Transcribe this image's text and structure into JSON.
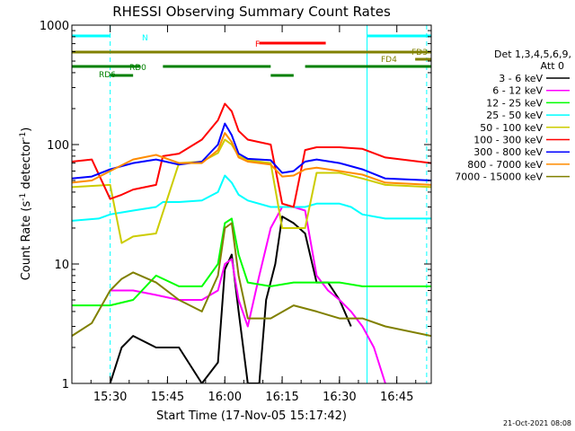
{
  "chart_data": {
    "type": "line",
    "title": "RHESSI Observing Summary Count Rates",
    "xlabel": "Start Time (17-Nov-05 15:17:42)",
    "ylabel_main": "Count Rate (s",
    "ylabel_sup1": "-1",
    "ylabel_mid": " detector",
    "ylabel_sup2": "-1",
    "ylabel_end": ")",
    "y_scale": "log",
    "xlim": [
      15.333,
      16.9
    ],
    "ylim": [
      1,
      1000
    ],
    "x_ticks": [
      {
        "v": 15.5,
        "label": "15:30"
      },
      {
        "v": 15.75,
        "label": "15:45"
      },
      {
        "v": 16.0,
        "label": "16:00"
      },
      {
        "v": 16.25,
        "label": "16:15"
      },
      {
        "v": 16.5,
        "label": "16:30"
      },
      {
        "v": 16.75,
        "label": "16:45"
      }
    ],
    "y_ticks": [
      {
        "v": 1,
        "label": "1"
      },
      {
        "v": 10,
        "label": "10"
      },
      {
        "v": 100,
        "label": "100"
      },
      {
        "v": 1000,
        "label": "1000"
      }
    ],
    "legend_header": [
      "Det 1,3,4,5,6,9,",
      "Att 0"
    ],
    "legend_position": "right",
    "series": [
      {
        "name": "3 - 6 keV",
        "color": "#000000",
        "x": [
          15.333,
          15.42,
          15.5,
          15.55,
          15.6,
          15.7,
          15.8,
          15.9,
          15.97,
          16.0,
          16.03,
          16.06,
          16.1,
          16.15,
          16.18,
          16.22,
          16.25,
          16.3,
          16.35,
          16.4,
          16.45,
          16.5,
          16.55,
          16.62,
          16.7,
          16.9
        ],
        "y": [
          null,
          null,
          1,
          2,
          2.5,
          2,
          2,
          1,
          1.5,
          9,
          12,
          4,
          1,
          1,
          5,
          10,
          25,
          22,
          18,
          7,
          7,
          5,
          3,
          null,
          null,
          null
        ]
      },
      {
        "name": "6 - 12 keV",
        "color": "#ff00ff",
        "x": [
          15.333,
          15.45,
          15.5,
          15.6,
          15.7,
          15.8,
          15.9,
          15.97,
          16.0,
          16.03,
          16.06,
          16.1,
          16.15,
          16.2,
          16.25,
          16.3,
          16.35,
          16.4,
          16.45,
          16.5,
          16.55,
          16.6,
          16.65,
          16.7,
          16.9
        ],
        "y": [
          null,
          null,
          6,
          6,
          5.5,
          5,
          5,
          6,
          10,
          11,
          5,
          3,
          8,
          20,
          30,
          30,
          28,
          8,
          6,
          5,
          4,
          3,
          2,
          1,
          null
        ]
      },
      {
        "name": "12 - 25 keV",
        "color": "#00ff00",
        "x": [
          15.333,
          15.5,
          15.6,
          15.7,
          15.8,
          15.9,
          15.97,
          16.0,
          16.03,
          16.06,
          16.1,
          16.2,
          16.3,
          16.4,
          16.5,
          16.6,
          16.7,
          16.9
        ],
        "y": [
          4.5,
          4.5,
          5,
          8,
          6.5,
          6.5,
          10,
          22,
          24,
          12,
          7,
          6.5,
          7,
          7,
          7,
          6.5,
          6.5,
          6.5
        ]
      },
      {
        "name": "25 - 50 keV",
        "color": "#00ffff",
        "x": [
          15.333,
          15.45,
          15.5,
          15.55,
          15.6,
          15.7,
          15.73,
          15.8,
          15.9,
          15.97,
          16.0,
          16.03,
          16.06,
          16.1,
          16.2,
          16.25,
          16.3,
          16.35,
          16.4,
          16.5,
          16.55,
          16.6,
          16.7,
          16.9
        ],
        "y": [
          23,
          24,
          26,
          27,
          28,
          30,
          33,
          33,
          34,
          40,
          55,
          48,
          38,
          34,
          30,
          30,
          30,
          30,
          32,
          32,
          30,
          26,
          24,
          24
        ]
      },
      {
        "name": "50 - 100 keV",
        "color": "#cccc00",
        "x": [
          15.333,
          15.5,
          15.55,
          15.6,
          15.7,
          15.8,
          15.9,
          15.97,
          16.0,
          16.03,
          16.06,
          16.1,
          16.2,
          16.25,
          16.3,
          16.35,
          16.4,
          16.5,
          16.6,
          16.7,
          16.9
        ],
        "y": [
          44,
          46,
          15,
          17,
          18,
          70,
          72,
          85,
          110,
          100,
          80,
          74,
          70,
          20,
          20,
          20,
          58,
          58,
          52,
          46,
          44
        ]
      },
      {
        "name": "100 - 300 keV",
        "color": "#ff0000",
        "x": [
          15.333,
          15.42,
          15.5,
          15.55,
          15.6,
          15.7,
          15.73,
          15.8,
          15.9,
          15.97,
          16.0,
          16.03,
          16.06,
          16.1,
          16.2,
          16.25,
          16.3,
          16.35,
          16.4,
          16.5,
          16.6,
          16.7,
          16.9
        ],
        "y": [
          72,
          75,
          35,
          38,
          42,
          46,
          80,
          84,
          110,
          160,
          220,
          190,
          130,
          110,
          100,
          32,
          30,
          90,
          95,
          95,
          92,
          78,
          70
        ]
      },
      {
        "name": "300 - 800 keV",
        "color": "#0000ff",
        "x": [
          15.333,
          15.42,
          15.5,
          15.6,
          15.7,
          15.8,
          15.9,
          15.97,
          16.0,
          16.03,
          16.06,
          16.1,
          16.2,
          16.25,
          16.3,
          16.35,
          16.4,
          16.5,
          16.6,
          16.7,
          16.9
        ],
        "y": [
          52,
          54,
          62,
          70,
          75,
          68,
          72,
          100,
          150,
          120,
          84,
          76,
          74,
          58,
          60,
          72,
          75,
          70,
          62,
          52,
          50
        ]
      },
      {
        "name": "800 - 7000 keV",
        "color": "#ff8c00",
        "x": [
          15.333,
          15.42,
          15.5,
          15.6,
          15.7,
          15.8,
          15.9,
          15.97,
          16.0,
          16.03,
          16.06,
          16.1,
          16.2,
          16.25,
          16.3,
          16.35,
          16.4,
          16.5,
          16.6,
          16.7,
          16.9
        ],
        "y": [
          48,
          50,
          60,
          75,
          82,
          70,
          70,
          90,
          125,
          105,
          78,
          72,
          68,
          54,
          55,
          62,
          64,
          60,
          56,
          48,
          46
        ]
      },
      {
        "name": "7000 - 15000 keV",
        "color": "#808000",
        "x": [
          15.333,
          15.42,
          15.5,
          15.55,
          15.6,
          15.7,
          15.8,
          15.9,
          15.97,
          16.0,
          16.03,
          16.06,
          16.1,
          16.2,
          16.3,
          16.4,
          16.5,
          16.6,
          16.7,
          16.9
        ],
        "y": [
          2.5,
          3.2,
          6,
          7.5,
          8.5,
          7,
          5,
          4,
          8,
          20,
          22,
          8,
          3.5,
          3.5,
          4.5,
          4,
          3.5,
          3.5,
          3,
          2.5
        ]
      }
    ],
    "state_bars": [
      {
        "label": "N",
        "color": "#00ffff",
        "segments": [
          [
            15.333,
            15.5
          ],
          [
            16.62,
            16.9
          ]
        ]
      },
      {
        "label": "F",
        "color": "#ff0000",
        "segments": [
          [
            16.15,
            16.44
          ]
        ]
      },
      {
        "label": "FD3",
        "color": "#808000",
        "segments": [
          [
            15.333,
            16.9
          ]
        ]
      },
      {
        "label": "FD4",
        "color": "#808000",
        "segments": [
          [
            16.83,
            16.9
          ]
        ]
      },
      {
        "label": "RD0",
        "color": "#008000",
        "segments": [
          [
            15.333,
            15.63
          ],
          [
            15.73,
            16.2
          ],
          [
            16.35,
            16.9
          ]
        ]
      },
      {
        "label": "RD6",
        "color": "#008000",
        "segments": [
          [
            15.5,
            15.6
          ],
          [
            16.2,
            16.3
          ]
        ]
      }
    ],
    "vlines": [
      {
        "x": 15.333,
        "color": "#00ffff",
        "style": "solid"
      },
      {
        "x": 15.5,
        "color": "#00ffff",
        "style": "dashed"
      },
      {
        "x": 16.62,
        "color": "#00ffff",
        "style": "solid"
      },
      {
        "x": 16.88,
        "color": "#00ffff",
        "style": "dashed"
      }
    ],
    "timestamp": "21-Oct-2021 08:08"
  }
}
